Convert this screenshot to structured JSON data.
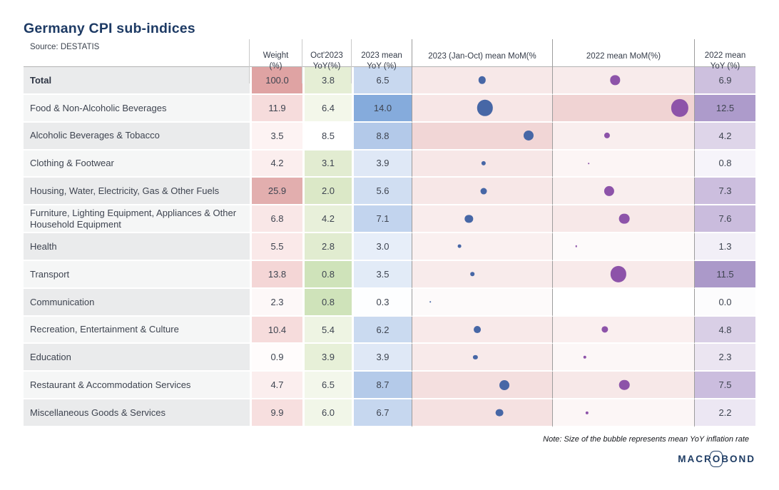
{
  "title": "Germany CPI sub-indices",
  "note": "Note: Size of the bubble represents mean YoY inflation rate",
  "logo": {
    "left": "MACR",
    "o": "O",
    "right": "BOND"
  },
  "colors": {
    "title": "#1d3a64",
    "bubble_2023": "#4767a6",
    "bubble_2022": "#8d53a9",
    "chart_row_tint": "#efd0d0"
  },
  "header": {
    "source": "Source: DESTATIS",
    "col_weight": "Weight\n(%)",
    "col_oct2023_yoy": "Oct'2023\nYoY(%)",
    "col_mean2023_yoy": "2023 mean\nYoY (%)",
    "col_mean2022_yoy": "2022 mean\nYoY (%)"
  },
  "chart_data": {
    "type": "table",
    "title": "Germany CPI sub-indices",
    "source": "Source: DESTATIS",
    "columns": [
      "Weight (%)",
      "Oct'2023 YoY(%)",
      "2023 mean YoY (%)",
      "2023 (Jan-Oct) mean MoM(%)",
      "2022 mean MoM(%)",
      "2022 mean YoY (%)"
    ],
    "bubble_charts": [
      {
        "title": "2023 (Jan-Oct) mean MoM(%",
        "type": "bubble",
        "ticks": [
          "0.0",
          "0.2",
          "0.4",
          "0.6",
          "0.8"
        ],
        "minor_ticks": [
          0.1,
          0.3,
          0.5,
          0.7
        ],
        "axis_min": 0,
        "axis_max": 0.8,
        "bubble_color": "#4767a6",
        "size_represents": "2023 mean YoY (%)"
      },
      {
        "title": "2022 mean MoM(%)",
        "type": "bubble",
        "ticks": [
          "0.0",
          "0.4",
          "0.8",
          "1.2",
          "1.6"
        ],
        "minor_ticks": [
          0.2,
          0.6,
          1.0,
          1.4
        ],
        "axis_min": 0,
        "axis_max": 1.6,
        "bubble_color": "#8d53a9",
        "size_represents": "2022 mean YoY (%)"
      }
    ],
    "rows": [
      {
        "name": "Total",
        "bold": true,
        "weight": {
          "v": "100.0",
          "bg": "#dfa3a3"
        },
        "oct_yoy": {
          "v": "3.8",
          "bg": "#e5eed5"
        },
        "mean2023_yoy": {
          "v": "6.5",
          "bg": "#c8d8ef"
        },
        "mom2023": 0.4,
        "mom2022": 0.67,
        "mean2022_yoy": {
          "v": "6.9",
          "bg": "#cdc0de"
        }
      },
      {
        "name": "Food & Non-Alcoholic Beverages",
        "weight": {
          "v": "11.9",
          "bg": "#f6dcdc"
        },
        "oct_yoy": {
          "v": "6.4",
          "bg": "#f3f7ea"
        },
        "mean2023_yoy": {
          "v": "14.0",
          "bg": "#85abdc"
        },
        "mom2023": 0.42,
        "mom2022": 1.5,
        "mean2022_yoy": {
          "v": "12.5",
          "bg": "#ad9bcb"
        }
      },
      {
        "name": "Alcoholic Beverages & Tobacco",
        "weight": {
          "v": "3.5",
          "bg": "#fdf3f3"
        },
        "oct_yoy": {
          "v": "8.5",
          "bg": "#ffffff"
        },
        "mean2023_yoy": {
          "v": "8.8",
          "bg": "#b3c9e9"
        },
        "mom2023": 0.69,
        "mom2022": 0.57,
        "mean2022_yoy": {
          "v": "4.2",
          "bg": "#ded5e9"
        }
      },
      {
        "name": "Clothing & Footwear",
        "weight": {
          "v": "4.2",
          "bg": "#fbeeee"
        },
        "oct_yoy": {
          "v": "3.1",
          "bg": "#e2ecd1"
        },
        "mean2023_yoy": {
          "v": "3.9",
          "bg": "#dfe8f6"
        },
        "mom2023": 0.41,
        "mom2022": 0.33,
        "mean2022_yoy": {
          "v": "0.8",
          "bg": "#f6f4fa"
        }
      },
      {
        "name": "Housing, Water, Electricity, Gas & Other Fuels",
        "weight": {
          "v": "25.9",
          "bg": "#e2aeae"
        },
        "oct_yoy": {
          "v": "2.0",
          "bg": "#dbe8c7"
        },
        "mean2023_yoy": {
          "v": "5.6",
          "bg": "#d0def2"
        },
        "mom2023": 0.41,
        "mom2022": 0.59,
        "mean2022_yoy": {
          "v": "7.3",
          "bg": "#ccbede"
        }
      },
      {
        "name": "Furniture, Lighting Equipment, Appliances & Other Household Equipment",
        "weight": {
          "v": "6.8",
          "bg": "#f9e7e7"
        },
        "oct_yoy": {
          "v": "4.2",
          "bg": "#e8f0da"
        },
        "mean2023_yoy": {
          "v": "7.1",
          "bg": "#c2d4ee"
        },
        "mom2023": 0.32,
        "mom2022": 0.79,
        "mean2022_yoy": {
          "v": "7.6",
          "bg": "#cabcdd"
        }
      },
      {
        "name": "Health",
        "weight": {
          "v": "5.5",
          "bg": "#fae9e9"
        },
        "oct_yoy": {
          "v": "2.8",
          "bg": "#e1ecd0"
        },
        "mean2023_yoy": {
          "v": "3.0",
          "bg": "#e7eef9"
        },
        "mom2023": 0.26,
        "mom2022": 0.17,
        "mean2022_yoy": {
          "v": "1.3",
          "bg": "#f2eff7"
        }
      },
      {
        "name": "Transport",
        "weight": {
          "v": "13.8",
          "bg": "#f4d6d6"
        },
        "oct_yoy": {
          "v": "0.8",
          "bg": "#cfe3ba"
        },
        "mean2023_yoy": {
          "v": "3.5",
          "bg": "#e2ebf7"
        },
        "mom2023": 0.34,
        "mom2022": 0.71,
        "mean2022_yoy": {
          "v": "11.5",
          "bg": "#ab99c9"
        }
      },
      {
        "name": "Communication",
        "weight": {
          "v": "2.3",
          "bg": "#fdf8f8"
        },
        "oct_yoy": {
          "v": "0.8",
          "bg": "#cfe3ba"
        },
        "mean2023_yoy": {
          "v": "0.3",
          "bg": "#fdfeff"
        },
        "mom2023": 0.08,
        "mom2022": null,
        "mean2022_yoy": {
          "v": "0.0",
          "bg": "#fcfcfd"
        }
      },
      {
        "name": "Recreation, Entertainment & Culture",
        "weight": {
          "v": "10.4",
          "bg": "#f6dcdc"
        },
        "oct_yoy": {
          "v": "5.4",
          "bg": "#eef4e3"
        },
        "mean2023_yoy": {
          "v": "6.2",
          "bg": "#cadaf0"
        },
        "mom2023": 0.37,
        "mom2022": 0.54,
        "mean2022_yoy": {
          "v": "4.8",
          "bg": "#d9cfe6"
        }
      },
      {
        "name": "Education",
        "weight": {
          "v": "0.9",
          "bg": "#fffcfc"
        },
        "oct_yoy": {
          "v": "3.9",
          "bg": "#e7f0d8"
        },
        "mean2023_yoy": {
          "v": "3.9",
          "bg": "#dfe8f6"
        },
        "mom2023": 0.36,
        "mom2022": 0.28,
        "mean2022_yoy": {
          "v": "2.3",
          "bg": "#ebe5f1"
        }
      },
      {
        "name": "Restaurant & Accommodation Services",
        "weight": {
          "v": "4.7",
          "bg": "#fbeeee"
        },
        "oct_yoy": {
          "v": "6.5",
          "bg": "#f3f7eb"
        },
        "mean2023_yoy": {
          "v": "8.7",
          "bg": "#b4cae9"
        },
        "mom2023": 0.54,
        "mom2022": 0.79,
        "mean2022_yoy": {
          "v": "7.5",
          "bg": "#cbbdde"
        }
      },
      {
        "name": "Miscellaneous Goods & Services",
        "weight": {
          "v": "9.9",
          "bg": "#f7dfdf"
        },
        "oct_yoy": {
          "v": "6.0",
          "bg": "#f1f6e8"
        },
        "mean2023_yoy": {
          "v": "6.7",
          "bg": "#c6d7ef"
        },
        "mom2023": 0.51,
        "mom2022": 0.31,
        "mean2022_yoy": {
          "v": "2.2",
          "bg": "#ece7f3"
        }
      }
    ]
  }
}
